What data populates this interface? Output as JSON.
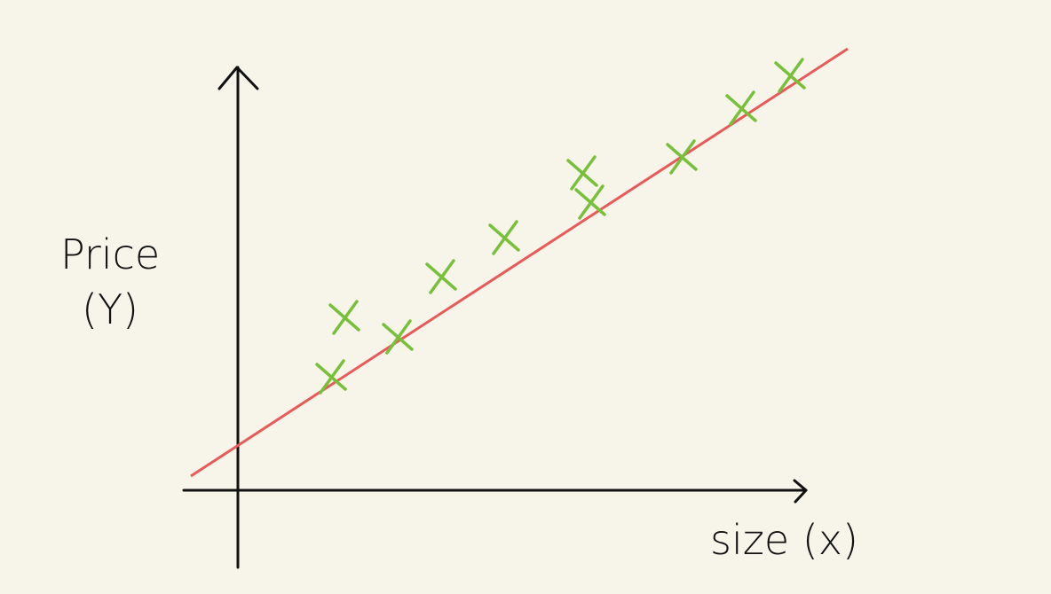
{
  "y_label": {
    "line1": "Price",
    "line2": "(Y)"
  },
  "x_label": "size (x)"
}
